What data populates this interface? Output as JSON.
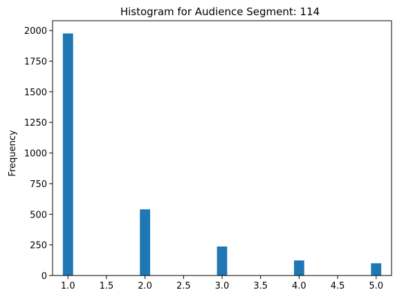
{
  "chart_data": {
    "type": "bar",
    "title": "Histogram for Audience Segment: 114",
    "xlabel": "",
    "ylabel": "Frequency",
    "bar_color": "#1f77b4",
    "xlim": [
      0.8,
      5.2
    ],
    "ylim": [
      0,
      2080
    ],
    "bin_width": 0.133,
    "bins": [
      {
        "center": 1.0,
        "count": 1976
      },
      {
        "center": 2.0,
        "count": 540
      },
      {
        "center": 3.0,
        "count": 237
      },
      {
        "center": 4.0,
        "count": 123
      },
      {
        "center": 5.0,
        "count": 100
      }
    ],
    "x_ticks": [
      1.0,
      1.5,
      2.0,
      2.5,
      3.0,
      3.5,
      4.0,
      4.5,
      5.0
    ],
    "x_tick_labels": [
      "1.0",
      "1.5",
      "2.0",
      "2.5",
      "3.0",
      "3.5",
      "4.0",
      "4.5",
      "5.0"
    ],
    "y_ticks": [
      0,
      250,
      500,
      750,
      1000,
      1250,
      1500,
      1750,
      2000
    ],
    "y_tick_labels": [
      "0",
      "250",
      "500",
      "750",
      "1000",
      "1250",
      "1500",
      "1750",
      "2000"
    ],
    "grid": false,
    "legend": false
  }
}
